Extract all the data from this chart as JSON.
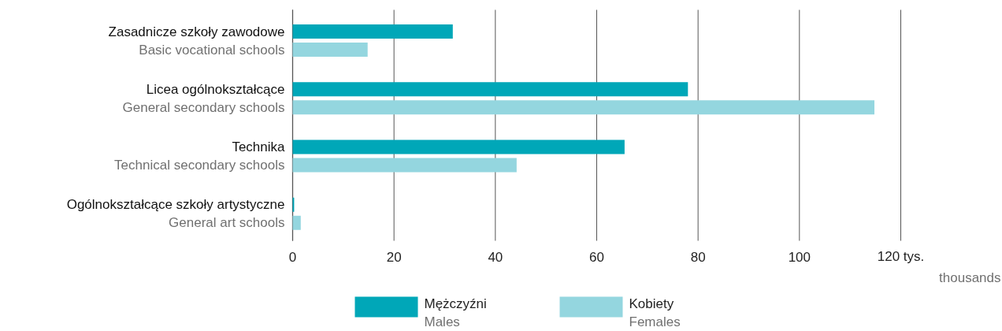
{
  "chart_data": {
    "type": "bar",
    "orientation": "horizontal",
    "categories": [
      "Zasadnicze szkoły zawodowe\nBasic vocational schools",
      "Licea ogólnokształcące\nGeneral secondary schools",
      "Technika\nTechnical secondary schools",
      "Ogólnokształcące szkoły artystyczne\nGeneral art schools"
    ],
    "series": [
      {
        "name": "Mężczyźni\nMales",
        "color": "#00a7b8",
        "values": [
          31.6,
          78.0,
          65.5,
          0.3
        ]
      },
      {
        "name": "Kobiety\nFemales",
        "color": "#94d6df",
        "values": [
          14.8,
          114.8,
          44.2,
          1.6
        ]
      }
    ],
    "xlim": [
      0,
      120
    ],
    "xticks": [
      0,
      20,
      40,
      60,
      80,
      100,
      {
        "value": 120,
        "label": "120 tys."
      }
    ],
    "xlabel": "thousands",
    "grid": "x",
    "legend": "bottom"
  }
}
